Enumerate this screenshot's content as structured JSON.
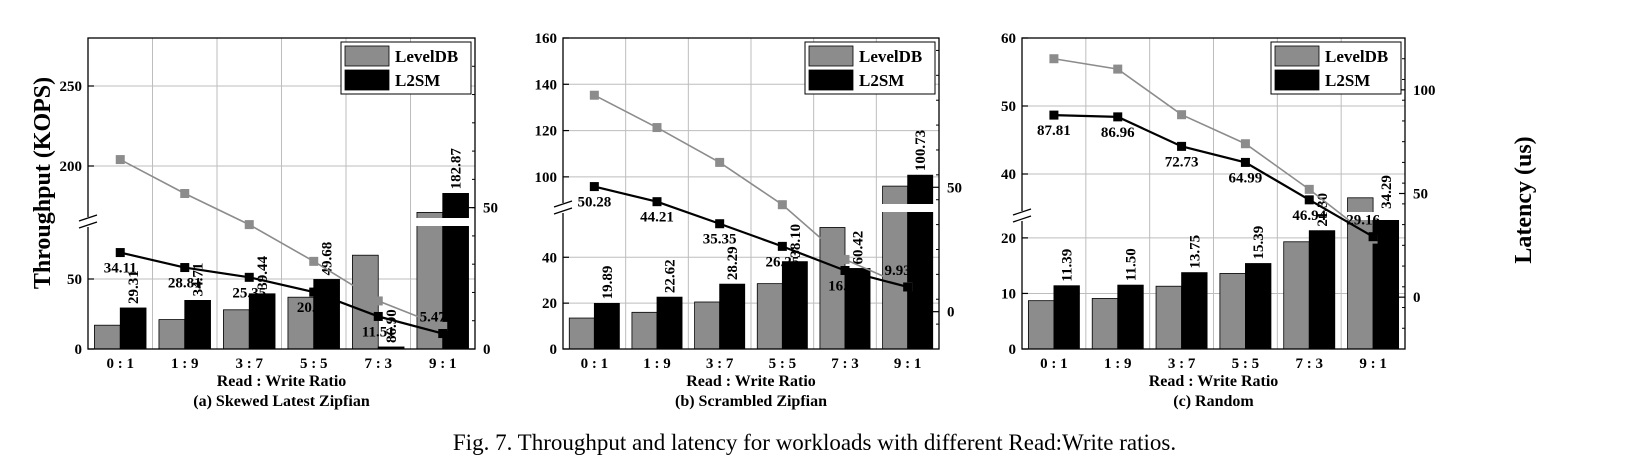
{
  "caption": "Fig. 7.  Throughput and latency for workloads with different Read:Write ratios.",
  "ylabel_left": "Throughput (KOPS)",
  "ylabel_right": "Latency (us)",
  "colors": {
    "leveldb": "#8c8c8c",
    "l2sm": "#000000",
    "leveldb_line": "#8c8c8c",
    "l2sm_line": "#000000",
    "grid": "#bdbdbd"
  },
  "chart_data": [
    {
      "type": "bar",
      "title": "(a) Skewed Latest Zipfian",
      "xlabel": "Read : Write Ratio",
      "categories": [
        "0 : 1",
        "1 : 9",
        "3 : 7",
        "5 : 5",
        "7 : 3",
        "9 : 1"
      ],
      "legend": [
        "LevelDB",
        "L2SM"
      ],
      "legend_position": "top-right",
      "grid": true,
      "throughput_axis": {
        "lower_ticks": [
          "0",
          "50"
        ],
        "lower_range": [
          0,
          85
        ],
        "upper_ticks": [
          "200",
          "250"
        ],
        "upper_range": [
          170,
          280
        ]
      },
      "latency_axis": {
        "ticks": [
          "0",
          "50"
        ],
        "range": [
          0,
          120
        ]
      },
      "series": [
        {
          "name": "LevelDB",
          "values": [
            17,
            21,
            28,
            37,
            67,
            171
          ]
        },
        {
          "name": "L2SM",
          "values": [
            29.31,
            34.71,
            39.44,
            49.68,
            86.9,
            182.87
          ],
          "labels": [
            "29.31",
            "34.71",
            "39.44",
            "49.68",
            "86.90",
            "182.87"
          ]
        }
      ],
      "latency_series": [
        {
          "name": "LevelDB",
          "values": [
            67,
            55,
            44,
            31,
            17,
            8
          ]
        },
        {
          "name": "L2SM",
          "values": [
            34.11,
            28.81,
            25.35,
            20.13,
            11.51,
            5.47
          ],
          "labels": [
            "34.11",
            "28.81",
            "25.35",
            "20.13",
            "11.51",
            "5.47"
          ]
        }
      ]
    },
    {
      "type": "bar",
      "title": "(b) Scrambled Zipfian",
      "xlabel": "Read : Write Ratio",
      "categories": [
        "0 : 1",
        "1 : 9",
        "3 : 7",
        "5 : 5",
        "7 : 3",
        "9 : 1"
      ],
      "legend": [
        "LevelDB",
        "L2SM"
      ],
      "legend_position": "top-right",
      "grid": true,
      "throughput_axis": {
        "lower_ticks": [
          "0",
          "20",
          "40"
        ],
        "lower_range": [
          0,
          58
        ],
        "upper_ticks": [
          "100",
          "120",
          "140",
          "160"
        ],
        "upper_range": [
          90,
          160
        ]
      },
      "latency_axis": {
        "ticks": [
          "0",
          "50"
        ],
        "range": [
          -10,
          110
        ]
      },
      "series": [
        {
          "name": "LevelDB",
          "values": [
            13.5,
            16,
            20.5,
            28.5,
            53,
            96
          ]
        },
        {
          "name": "L2SM",
          "values": [
            19.89,
            22.62,
            28.29,
            38.1,
            60.42,
            100.73
          ],
          "labels": [
            "19.89",
            "22.62",
            "28.29",
            "38.10",
            "60.42",
            "100.73"
          ]
        }
      ],
      "latency_series": [
        {
          "name": "LevelDB",
          "values": [
            87,
            74,
            60,
            43,
            21,
            10
          ]
        },
        {
          "name": "L2SM",
          "values": [
            50.28,
            44.21,
            35.35,
            26.25,
            16.55,
            9.93
          ],
          "labels": [
            "50.28",
            "44.21",
            "35.35",
            "26.25",
            "16.55",
            "9.93"
          ]
        }
      ]
    },
    {
      "type": "bar",
      "title": "(c) Random",
      "xlabel": "Read : Write Ratio",
      "categories": [
        "0 : 1",
        "1 : 9",
        "3 : 7",
        "5 : 5",
        "7 : 3",
        "9 : 1"
      ],
      "legend": [
        "LevelDB",
        "L2SM"
      ],
      "legend_position": "top-right",
      "grid": true,
      "throughput_axis": {
        "lower_ticks": [
          "0",
          "10",
          "20"
        ],
        "lower_range": [
          0,
          22.5
        ],
        "upper_ticks": [
          "40",
          "50",
          "60"
        ],
        "upper_range": [
          35,
          60
        ]
      },
      "latency_axis": {
        "ticks": [
          "0",
          "50",
          "100"
        ],
        "range": [
          -20,
          125
        ]
      },
      "series": [
        {
          "name": "LevelDB",
          "values": [
            8.7,
            9.1,
            11.3,
            13.6,
            19.3,
            36.5
          ]
        },
        {
          "name": "L2SM",
          "values": [
            11.39,
            11.5,
            13.75,
            15.39,
            21.3,
            34.29
          ],
          "labels": [
            "11.39",
            "11.50",
            "13.75",
            "15.39",
            "21.30",
            "34.29"
          ]
        }
      ],
      "latency_series": [
        {
          "name": "LevelDB",
          "values": [
            115,
            110,
            88,
            74,
            52,
            28
          ]
        },
        {
          "name": "L2SM",
          "values": [
            87.81,
            86.96,
            72.73,
            64.99,
            46.94,
            29.16
          ],
          "labels": [
            "87.81",
            "86.96",
            "72.73",
            "64.99",
            "46.94",
            "29.16"
          ]
        }
      ]
    }
  ]
}
